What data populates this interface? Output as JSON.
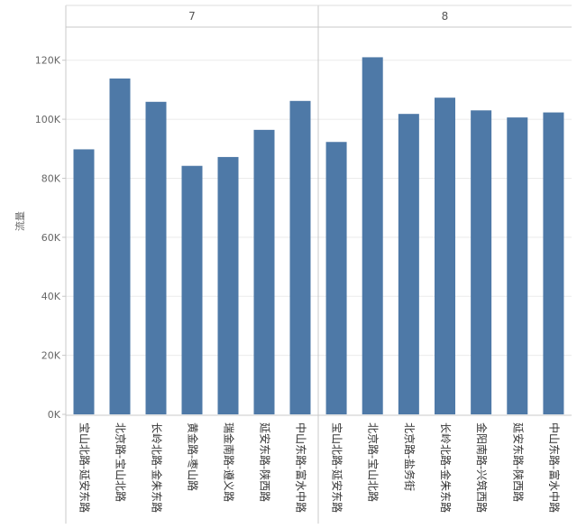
{
  "chart_data": {
    "type": "bar",
    "ylabel": "流量",
    "ylim": [
      0,
      130000
    ],
    "y_ticks": [
      {
        "value": 0,
        "label": "0K"
      },
      {
        "value": 20000,
        "label": "20K"
      },
      {
        "value": 40000,
        "label": "40K"
      },
      {
        "value": 60000,
        "label": "60K"
      },
      {
        "value": 80000,
        "label": "80K"
      },
      {
        "value": 100000,
        "label": "100K"
      },
      {
        "value": 120000,
        "label": "120K"
      }
    ],
    "grid": true,
    "bar_color": "#4e79a7",
    "panels": [
      {
        "header": "7",
        "categories": [
          "宝山北路-延安东路",
          "北京路-宝山北路",
          "长岭北路-金朱东路",
          "黄金路-枣山路",
          "瑞金南路-遵义路",
          "延安东路-陕西路",
          "中山东路-富水中路"
        ],
        "values": [
          89800,
          113800,
          105900,
          84200,
          87200,
          96400,
          106200
        ]
      },
      {
        "header": "8",
        "categories": [
          "宝山北路-延安东路",
          "北京路-宝山北路",
          "北京路-盐务街",
          "长岭北路-金朱东路",
          "金阳南路-兴筑西路",
          "延安东路-陕西路",
          "中山东路-富水中路"
        ],
        "values": [
          92300,
          121000,
          101800,
          107300,
          103000,
          100600,
          102300
        ]
      }
    ]
  }
}
